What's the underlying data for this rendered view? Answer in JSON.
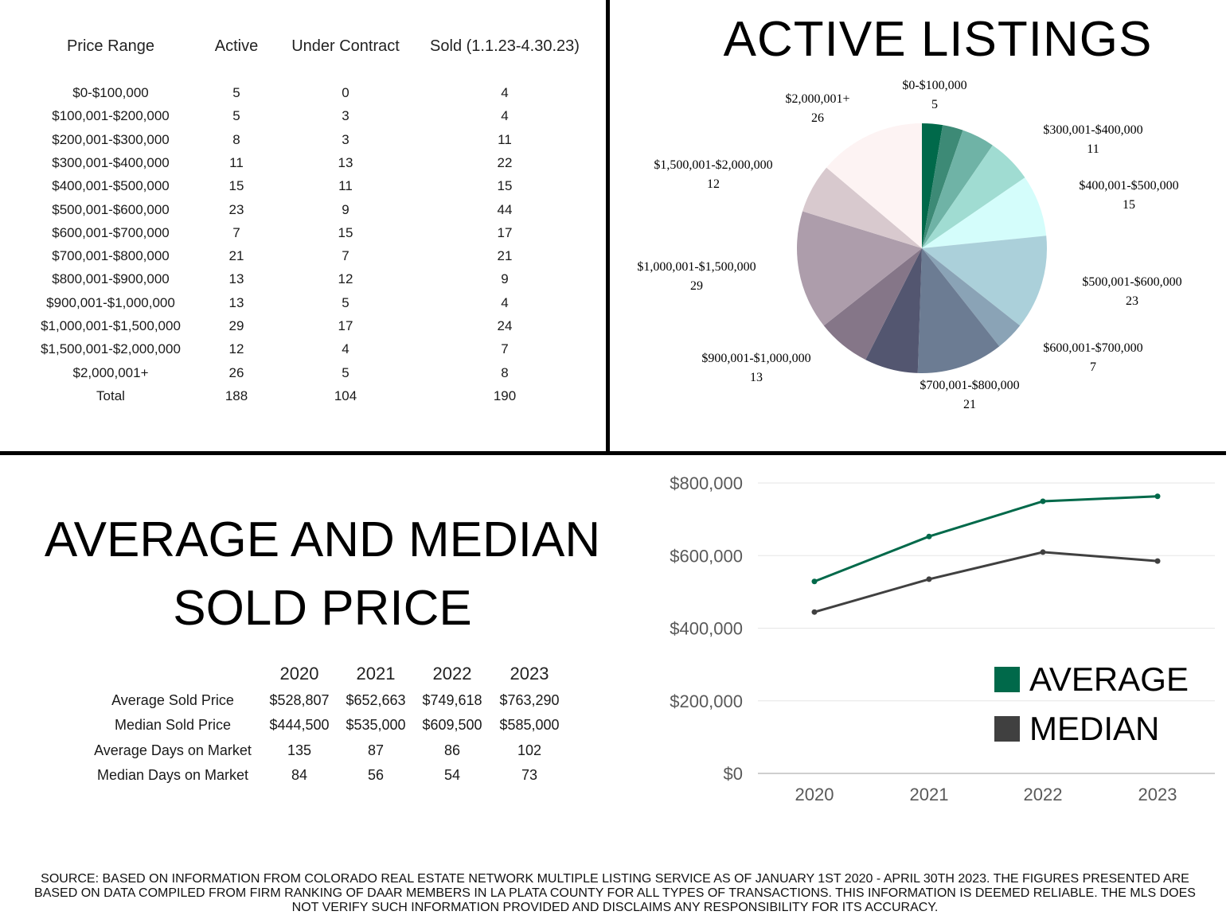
{
  "inventory_table": {
    "headers": [
      "Price Range",
      "Active",
      "Under Contract",
      "Sold (1.1.23-4.30.23)"
    ],
    "rows": [
      {
        "range": "$0-$100,000",
        "active": "5",
        "under_contract": "0",
        "sold": "4"
      },
      {
        "range": "$100,001-$200,000",
        "active": "5",
        "under_contract": "3",
        "sold": "4"
      },
      {
        "range": "$200,001-$300,000",
        "active": "8",
        "under_contract": "3",
        "sold": "11"
      },
      {
        "range": "$300,001-$400,000",
        "active": "11",
        "under_contract": "13",
        "sold": "22"
      },
      {
        "range": "$400,001-$500,000",
        "active": "15",
        "under_contract": "11",
        "sold": "15"
      },
      {
        "range": "$500,001-$600,000",
        "active": "23",
        "under_contract": "9",
        "sold": "44"
      },
      {
        "range": "$600,001-$700,000",
        "active": "7",
        "under_contract": "15",
        "sold": "17"
      },
      {
        "range": "$700,001-$800,000",
        "active": "21",
        "under_contract": "7",
        "sold": "21"
      },
      {
        "range": "$800,001-$900,000",
        "active": "13",
        "under_contract": "12",
        "sold": "9"
      },
      {
        "range": "$900,001-$1,000,000",
        "active": "13",
        "under_contract": "5",
        "sold": "4"
      },
      {
        "range": "$1,000,001-$1,500,000",
        "active": "29",
        "under_contract": "17",
        "sold": "24"
      },
      {
        "range": "$1,500,001-$2,000,000",
        "active": "12",
        "under_contract": "4",
        "sold": "7"
      },
      {
        "range": "$2,000,001+",
        "active": "26",
        "under_contract": "5",
        "sold": "8"
      },
      {
        "range": "Total",
        "active": "188",
        "under_contract": "104",
        "sold": "190"
      }
    ]
  },
  "stats_title": {
    "line1": "AVERAGE AND MEDIAN",
    "line2": "SOLD PRICE"
  },
  "stats_table": {
    "years": [
      "2020",
      "2021",
      "2022",
      "2023"
    ],
    "rows": [
      {
        "label": "Average Sold Price",
        "values": [
          "$528,807",
          "$652,663",
          "$749,618",
          "$763,290"
        ]
      },
      {
        "label": "Median Sold Price",
        "values": [
          "$444,500",
          "$535,000",
          "$609,500",
          "$585,000"
        ]
      },
      {
        "label": "Average Days on Market",
        "values": [
          "135",
          "87",
          "86",
          "102"
        ]
      },
      {
        "label": "Median Days on Market",
        "values": [
          "84",
          "56",
          "54",
          "73"
        ]
      }
    ]
  },
  "chart_data": [
    {
      "type": "pie",
      "title": "ACTIVE LISTINGS",
      "slices": [
        {
          "label": "$0-$100,000",
          "value": 5,
          "color": "#00694a"
        },
        {
          "label": "$100,001-$200,000",
          "value": 5,
          "color": "#3d8a76"
        },
        {
          "label": "$200,001-$300,000",
          "value": 8,
          "color": "#6fb3a6"
        },
        {
          "label": "$300,001-$400,000",
          "value": 11,
          "color": "#a0dcd2"
        },
        {
          "label": "$400,001-$500,000",
          "value": 15,
          "color": "#d4fdfb"
        },
        {
          "label": "$500,001-$600,000",
          "value": 23,
          "color": "#abd0da"
        },
        {
          "label": "$600,001-$700,000",
          "value": 7,
          "color": "#8aa3b6"
        },
        {
          "label": "$700,001-$800,000",
          "value": 21,
          "color": "#6c7c93"
        },
        {
          "label": "$800,001-$900,000",
          "value": 13,
          "color": "#535670"
        },
        {
          "label": "$900,001-$1,000,000",
          "value": 13,
          "color": "#857688"
        },
        {
          "label": "$1,000,001-$1,500,000",
          "value": 29,
          "color": "#ad9dab"
        },
        {
          "label": "$1,500,001-$2,000,000",
          "value": 12,
          "color": "#d8c9ce"
        },
        {
          "label": "$2,000,001+",
          "value": 26,
          "color": "#fdf3f3"
        }
      ],
      "shown_labels": [
        {
          "label": "$0-$100,000",
          "value": "5"
        },
        {
          "label": "$300,001-$400,000",
          "value": "11"
        },
        {
          "label": "$400,001-$500,000",
          "value": "15"
        },
        {
          "label": "$500,001-$600,000",
          "value": "23"
        },
        {
          "label": "$600,001-$700,000",
          "value": "7"
        },
        {
          "label": "$700,001-$800,000",
          "value": "21"
        },
        {
          "label": "$900,001-$1,000,000",
          "value": "13"
        },
        {
          "label": "$1,000,001-$1,500,000",
          "value": "29"
        },
        {
          "label": "$1,500,001-$2,000,000",
          "value": "12"
        },
        {
          "label": "$2,000,001+",
          "value": "26"
        }
      ]
    },
    {
      "type": "line",
      "x": [
        "2020",
        "2021",
        "2022",
        "2023"
      ],
      "series": [
        {
          "name": "AVERAGE",
          "values": [
            528807,
            652663,
            749618,
            763290
          ],
          "color": "#00694a"
        },
        {
          "name": "MEDIAN",
          "values": [
            444500,
            535000,
            609500,
            585000
          ],
          "color": "#404040"
        }
      ],
      "ylim": [
        0,
        800000
      ],
      "yticks": [
        0,
        200000,
        400000,
        600000,
        800000
      ],
      "ytick_labels": [
        "$0",
        "$200,000",
        "$400,000",
        "$600,000",
        "$800,000"
      ],
      "grid": true,
      "legend_position": "bottom-right"
    }
  ],
  "footer": {
    "source": "SOURCE: BASED ON INFORMATION FROM COLORADO REAL ESTATE NETWORK MULTIPLE LISTING SERVICE AS OF JANUARY 1ST 2020 - APRIL 30TH 2023. THE FIGURES PRESENTED ARE BASED ON DATA COMPILED FROM FIRM RANKING OF DAAR MEMBERS IN LA PLATA COUNTY FOR ALL TYPES OF TRANSACTIONS. THIS INFORMATION IS DEEMED RELIABLE. THE MLS DOES NOT VERIFY SUCH INFORMATION PROVIDED AND DISCLAIMS ANY RESPONSIBILITY FOR ITS ACCURACY."
  }
}
